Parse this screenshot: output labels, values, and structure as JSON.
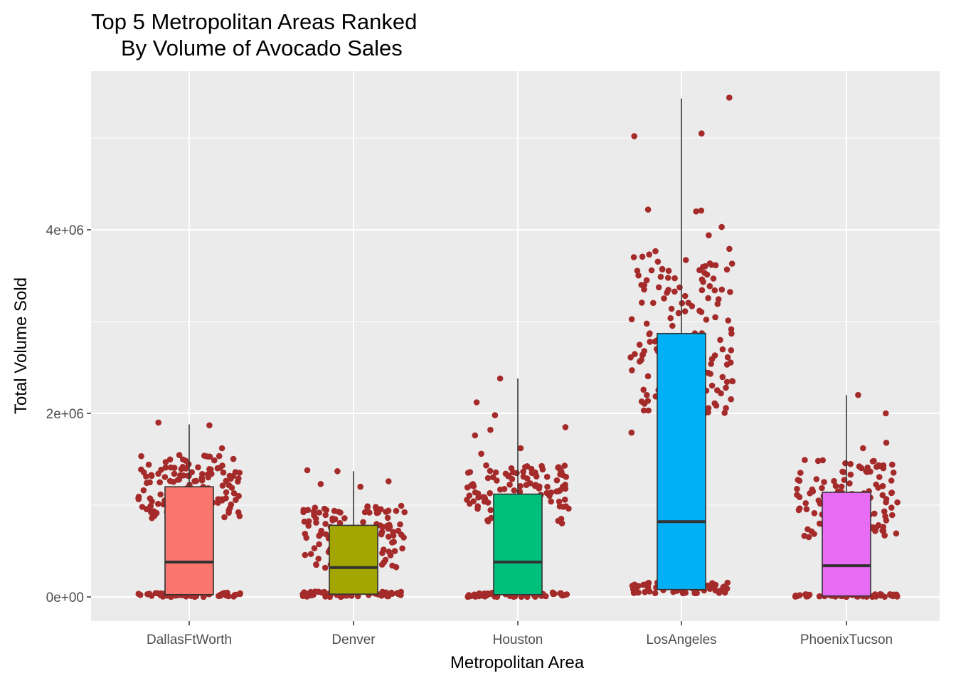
{
  "chart_data": {
    "type": "boxplot",
    "title": [
      "Top 5 Metropolitan Areas Ranked",
      "By Volume of Avocado Sales"
    ],
    "xlabel": "Metropolitan Area",
    "ylabel": "Total Volume Sold",
    "ylim": [
      -520000,
      5650000
    ],
    "y_ticks": [
      {
        "value": 0,
        "label": "0e+00"
      },
      {
        "value": 2000000,
        "label": "2e+06"
      },
      {
        "value": 4000000,
        "label": "4e+06"
      }
    ],
    "y_minor_gridlines": [
      1000000,
      3000000,
      5000000
    ],
    "grid": true,
    "legend": "none",
    "jitter_point_color": "#a52a2a",
    "panel_background": "#ebebeb",
    "categories": [
      "DallasFtWorth",
      "Denver",
      "Houston",
      "LosAngeles",
      "PhoenixTucson"
    ],
    "boxes": [
      {
        "category": "DallasFtWorth",
        "color": "#f8766d",
        "min": 0,
        "q1": 25000,
        "median": 380000,
        "q3": 1200000,
        "whisker_high": 1880000,
        "max": 1900000,
        "point_clusters": [
          {
            "low": 0,
            "high": 50000,
            "count": 60
          },
          {
            "low": 850000,
            "high": 1550000,
            "count": 130
          }
        ],
        "outliers": [
          1900000,
          1870000,
          1620000,
          680000
        ]
      },
      {
        "category": "Denver",
        "color": "#a3a500",
        "min": 0,
        "q1": 30000,
        "median": 320000,
        "q3": 780000,
        "whisker_high": 1370000,
        "max": 1380000,
        "point_clusters": [
          {
            "low": 0,
            "high": 60000,
            "count": 60
          },
          {
            "low": 300000,
            "high": 1000000,
            "count": 130
          }
        ],
        "outliers": [
          1380000,
          1370000,
          1260000,
          1230000,
          1200000
        ]
      },
      {
        "category": "Houston",
        "color": "#00bf7d",
        "min": 0,
        "q1": 25000,
        "median": 380000,
        "q3": 1120000,
        "whisker_high": 2380000,
        "max": 2380000,
        "point_clusters": [
          {
            "low": 0,
            "high": 50000,
            "count": 60
          },
          {
            "low": 800000,
            "high": 1450000,
            "count": 120
          }
        ],
        "outliers": [
          2380000,
          2120000,
          1980000,
          1850000,
          1820000,
          1760000,
          1620000,
          1560000
        ]
      },
      {
        "category": "LosAngeles",
        "color": "#00b0f6",
        "min": 50000,
        "q1": 80000,
        "median": 820000,
        "q3": 2870000,
        "whisker_high": 5430000,
        "max": 5440000,
        "point_clusters": [
          {
            "low": 40000,
            "high": 160000,
            "count": 60
          },
          {
            "low": 2000000,
            "high": 3800000,
            "count": 160
          }
        ],
        "outliers": [
          5440000,
          5050000,
          5020000,
          4220000,
          4210000,
          4200000,
          4030000,
          3940000,
          1790000
        ]
      },
      {
        "category": "PhoenixTucson",
        "color": "#e76bf3",
        "min": 0,
        "q1": 10000,
        "median": 340000,
        "q3": 1140000,
        "whisker_high": 2200000,
        "max": 2200000,
        "point_clusters": [
          {
            "low": 0,
            "high": 30000,
            "count": 60
          },
          {
            "low": 650000,
            "high": 1500000,
            "count": 130
          }
        ],
        "outliers": [
          2200000,
          2000000,
          1680000,
          1620000
        ]
      }
    ]
  }
}
